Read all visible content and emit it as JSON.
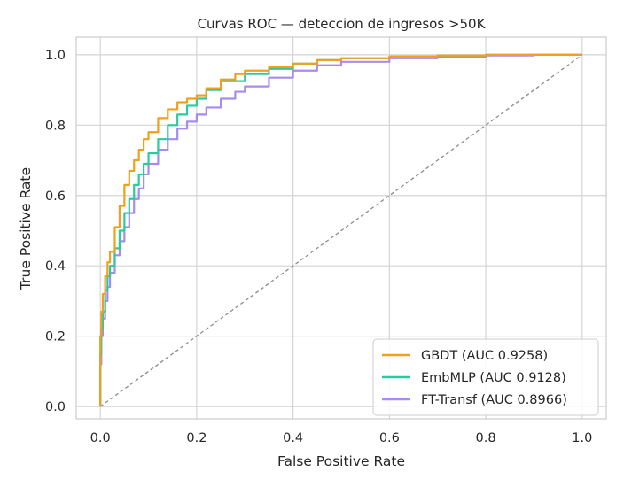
{
  "chart_data": {
    "type": "line",
    "title": "Curvas ROC — deteccion de ingresos >50K",
    "xlabel": "False Positive Rate",
    "ylabel": "True Positive Rate",
    "xlim": [
      -0.05,
      1.05
    ],
    "ylim": [
      -0.035,
      1.05
    ],
    "xticks": [
      0.0,
      0.2,
      0.4,
      0.6,
      0.8,
      1.0
    ],
    "xtick_labels": [
      "0.0",
      "0.2",
      "0.4",
      "0.6",
      "0.8",
      "1.0"
    ],
    "yticks": [
      0.0,
      0.2,
      0.4,
      0.6,
      0.8,
      1.0
    ],
    "ytick_labels": [
      "0.0",
      "0.2",
      "0.4",
      "0.6",
      "0.8",
      "1.0"
    ],
    "grid": true,
    "legend_position": "lower-right",
    "diagonal": {
      "x": [
        0,
        1
      ],
      "y": [
        0,
        1
      ],
      "color": "#8c8c8c",
      "style": "dashed"
    },
    "series": [
      {
        "name": "GBDT (AUC 0.9258)",
        "color": "#f0a01e",
        "x": [
          0,
          0.0,
          0.002,
          0.005,
          0.01,
          0.015,
          0.02,
          0.03,
          0.04,
          0.05,
          0.06,
          0.07,
          0.08,
          0.09,
          0.1,
          0.12,
          0.14,
          0.16,
          0.18,
          0.2,
          0.22,
          0.25,
          0.28,
          0.3,
          0.35,
          0.4,
          0.45,
          0.5,
          0.6,
          0.7,
          0.8,
          0.9,
          1.0
        ],
        "y": [
          0,
          0.2,
          0.27,
          0.32,
          0.37,
          0.41,
          0.44,
          0.51,
          0.57,
          0.63,
          0.67,
          0.7,
          0.73,
          0.76,
          0.78,
          0.82,
          0.845,
          0.865,
          0.875,
          0.885,
          0.905,
          0.93,
          0.945,
          0.955,
          0.965,
          0.975,
          0.985,
          0.99,
          0.995,
          0.998,
          1.0,
          1.0,
          1.0
        ]
      },
      {
        "name": "EmbMLP (AUC 0.9128)",
        "color": "#2ec99e",
        "x": [
          0,
          0.0,
          0.002,
          0.005,
          0.01,
          0.015,
          0.02,
          0.03,
          0.04,
          0.05,
          0.06,
          0.07,
          0.08,
          0.09,
          0.1,
          0.12,
          0.14,
          0.16,
          0.18,
          0.2,
          0.22,
          0.25,
          0.3,
          0.35,
          0.4,
          0.45,
          0.5,
          0.6,
          0.7,
          0.8,
          0.9,
          1.0
        ],
        "y": [
          0,
          0.15,
          0.22,
          0.27,
          0.33,
          0.37,
          0.4,
          0.45,
          0.5,
          0.55,
          0.59,
          0.63,
          0.66,
          0.69,
          0.72,
          0.76,
          0.8,
          0.83,
          0.855,
          0.875,
          0.9,
          0.925,
          0.945,
          0.96,
          0.975,
          0.985,
          0.99,
          0.995,
          0.998,
          1.0,
          1.0,
          1.0
        ]
      },
      {
        "name": "FT-Transf (AUC 0.8966)",
        "color": "#a78bf0",
        "x": [
          0,
          0.0,
          0.002,
          0.005,
          0.01,
          0.015,
          0.02,
          0.03,
          0.04,
          0.05,
          0.06,
          0.07,
          0.08,
          0.09,
          0.1,
          0.12,
          0.14,
          0.16,
          0.18,
          0.2,
          0.22,
          0.25,
          0.28,
          0.3,
          0.35,
          0.4,
          0.45,
          0.5,
          0.6,
          0.7,
          0.8,
          0.9,
          1.0
        ],
        "y": [
          0,
          0.12,
          0.2,
          0.25,
          0.3,
          0.34,
          0.38,
          0.43,
          0.47,
          0.51,
          0.55,
          0.59,
          0.62,
          0.66,
          0.69,
          0.73,
          0.76,
          0.79,
          0.81,
          0.83,
          0.85,
          0.875,
          0.895,
          0.91,
          0.935,
          0.955,
          0.97,
          0.98,
          0.99,
          0.995,
          0.998,
          1.0,
          1.0
        ]
      }
    ]
  }
}
